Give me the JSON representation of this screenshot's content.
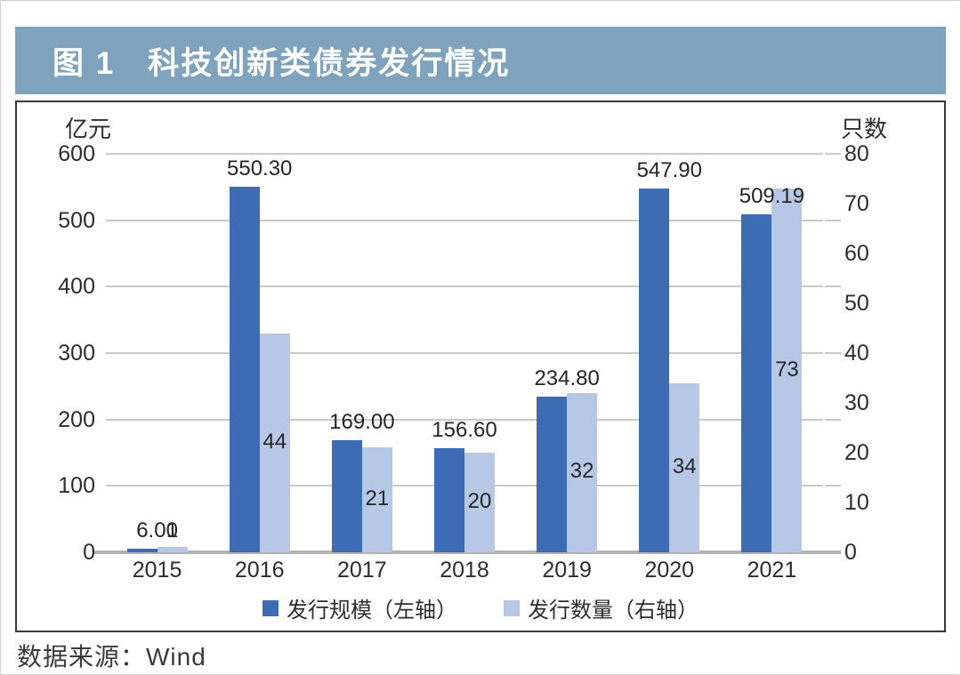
{
  "figure": {
    "title": "图 1　科技创新类债券发行情况"
  },
  "source": "数据来源：Wind",
  "colors": {
    "header_bg": "#7fa3bc",
    "title_text": "#ffffff",
    "bar_scale": "#3d6cb4",
    "bar_count": "#b6c8e6",
    "gridline": "#c9c9c9",
    "axis_line": "#b2b2b2",
    "label_text": "#252525"
  },
  "chart_data": {
    "type": "bar",
    "categories": [
      "2015",
      "2016",
      "2017",
      "2018",
      "2019",
      "2020",
      "2021"
    ],
    "series": [
      {
        "name": "发行规模（左轴）",
        "key": "issuance-scale",
        "axis": "left",
        "color": "#3d6cb4",
        "values": [
          6.0,
          550.3,
          169.0,
          156.6,
          234.8,
          547.9,
          509.19
        ],
        "labels": [
          "6.00",
          "550.30",
          "169.00",
          "156.60",
          "234.80",
          "547.90",
          "509.19"
        ]
      },
      {
        "name": "发行数量（右轴）",
        "key": "issuance-count",
        "axis": "right",
        "color": "#b6c8e6",
        "values": [
          1,
          44,
          21,
          20,
          32,
          34,
          73
        ],
        "labels": [
          "1",
          "44",
          "21",
          "20",
          "32",
          "34",
          "73"
        ]
      }
    ],
    "left_axis": {
      "title": "亿元",
      "min": 0,
      "max": 600,
      "step": 100,
      "ticks": [
        "0",
        "100",
        "200",
        "300",
        "400",
        "500",
        "600"
      ]
    },
    "right_axis": {
      "title": "只数",
      "min": 0,
      "max": 80,
      "step": 10,
      "ticks": [
        "0",
        "10",
        "20",
        "30",
        "40",
        "50",
        "60",
        "70",
        "80"
      ]
    },
    "legend_position": "bottom",
    "grid": true
  }
}
